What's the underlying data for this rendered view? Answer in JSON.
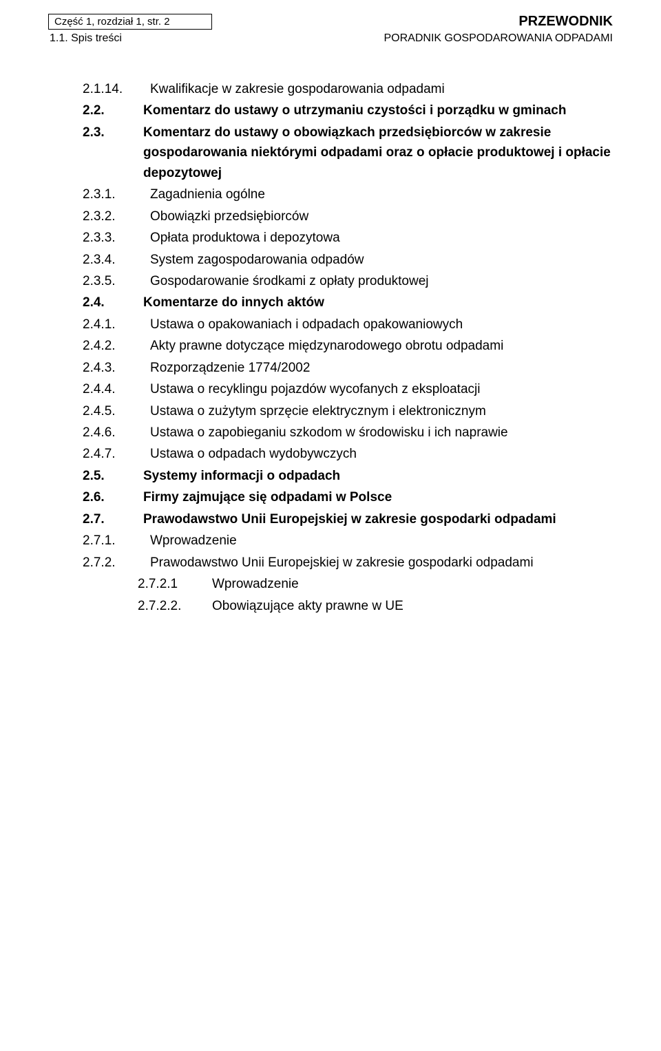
{
  "header": {
    "left_box": "Część 1, rozdział 1, str. 2",
    "right": "PRZEWODNIK",
    "sub_left": "1.1. Spis treści",
    "sub_right": "PORADNIK GOSPODAROWANIA ODPADAMI"
  },
  "toc": [
    {
      "num": "2.1.14.",
      "text": "Kwalifikacje w zakresie gospodarowania odpadami",
      "level": 2,
      "bold": false
    },
    {
      "num": "2.2.",
      "text": "Komentarz do ustawy o utrzymaniu czystości i porządku w gminach",
      "level": 1,
      "bold": true
    },
    {
      "num": "2.3.",
      "text": "Komentarz do ustawy o obowiązkach przedsiębiorców w zakresie gospodarowania niektórymi odpadami oraz o opłacie produktowej i opłacie depozytowej",
      "level": 1,
      "bold": true
    },
    {
      "num": "2.3.1.",
      "text": "Zagadnienia ogólne",
      "level": 2,
      "bold": false
    },
    {
      "num": "2.3.2.",
      "text": "Obowiązki przedsiębiorców",
      "level": 2,
      "bold": false
    },
    {
      "num": "2.3.3.",
      "text": "Opłata produktowa i depozytowa",
      "level": 2,
      "bold": false
    },
    {
      "num": "2.3.4.",
      "text": "System zagospodarowania odpadów",
      "level": 2,
      "bold": false
    },
    {
      "num": "2.3.5.",
      "text": "Gospodarowanie środkami z opłaty produktowej",
      "level": 2,
      "bold": false
    },
    {
      "num": "2.4.",
      "text": "Komentarze do innych aktów",
      "level": 1,
      "bold": true
    },
    {
      "num": "2.4.1.",
      "text": "Ustawa o opakowaniach i odpadach opakowaniowych",
      "level": 2,
      "bold": false
    },
    {
      "num": "2.4.2.",
      "text": "Akty prawne dotyczące międzynarodowego obrotu odpadami",
      "level": 2,
      "bold": false
    },
    {
      "num": "2.4.3.",
      "text": "Rozporządzenie 1774/2002",
      "level": 2,
      "bold": false
    },
    {
      "num": "2.4.4.",
      "text": "Ustawa o recyklingu pojazdów wycofanych z eksploatacji",
      "level": 2,
      "bold": false
    },
    {
      "num": "2.4.5.",
      "text": "Ustawa o zużytym sprzęcie elektrycznym i elektronicznym",
      "level": 2,
      "bold": false
    },
    {
      "num": "2.4.6.",
      "text": "Ustawa o zapobieganiu szkodom w środowisku i ich naprawie",
      "level": 2,
      "bold": false
    },
    {
      "num": "2.4.7.",
      "text": "Ustawa o odpadach wydobywczych",
      "level": 2,
      "bold": false
    },
    {
      "num": "2.5.",
      "text": "Systemy informacji o odpadach",
      "level": 1,
      "bold": true
    },
    {
      "num": "2.6.",
      "text": "Firmy zajmujące się odpadami w Polsce",
      "level": 1,
      "bold": true
    },
    {
      "num": "2.7.",
      "text": "Prawodawstwo Unii Europejskiej w zakresie gospodarki odpadami",
      "level": 1,
      "bold": true
    },
    {
      "num": "2.7.1.",
      "text": "Wprowadzenie",
      "level": 2,
      "bold": false
    },
    {
      "num": "2.7.2.",
      "text": "Prawodawstwo Unii Europejskiej w zakresie gospodarki odpadami",
      "level": 2,
      "bold": false
    },
    {
      "num": "2.7.2.1",
      "text": "Wprowadzenie",
      "level": 3,
      "bold": false
    },
    {
      "num": "2.7.2.2.",
      "text": "Obowiązujące akty prawne w UE",
      "level": 3,
      "bold": false
    }
  ]
}
